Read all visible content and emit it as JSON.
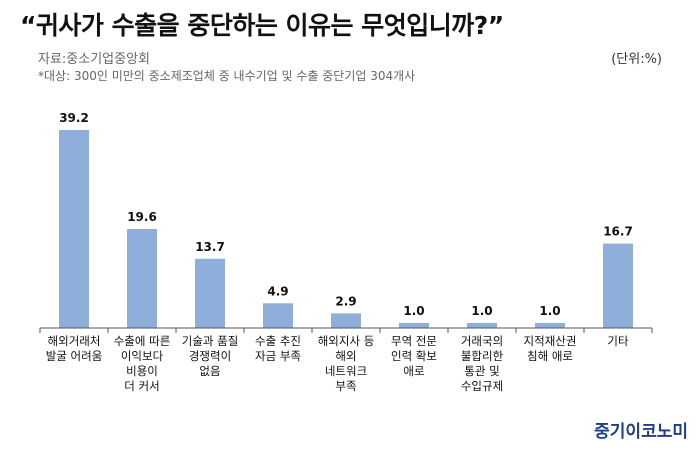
{
  "header": {
    "title": "“귀사가 수출을 중단하는 이유는 무엇입니까?”",
    "source": "자료:중소기업중앙회",
    "unit": "(단위:%)",
    "note": "*대상: 300인 미만의 중소제조업체 중 내수기업 및 수출 중단기업 304개사"
  },
  "watermark": "중기이코노미",
  "colors": {
    "bar": "#8eaedb",
    "axis": "#555555"
  },
  "chart_data": {
    "type": "bar",
    "categories": [
      "해외거래처\n발굴 어려움",
      "수출에 따른\n이익보다\n비용이\n더 커서",
      "기술과 품질\n경쟁력이\n없음",
      "수출 추진\n자금 부족",
      "해외지사 등\n해외\n네트워크\n부족",
      "무역 전문\n인력 확보\n애로",
      "거래국의\n불합리한\n통관 및\n수입규제",
      "지적재산권\n침해 애로",
      "기타"
    ],
    "values": [
      39.2,
      19.6,
      13.7,
      4.9,
      2.9,
      1.0,
      1.0,
      1.0,
      16.7
    ],
    "data_labels": [
      "39.2",
      "19.6",
      "13.7",
      "4.9",
      "2.9",
      "1.0",
      "1.0",
      "1.0",
      "16.7"
    ],
    "ylim": [
      0,
      39.2
    ],
    "grid": false,
    "legend": "none"
  }
}
